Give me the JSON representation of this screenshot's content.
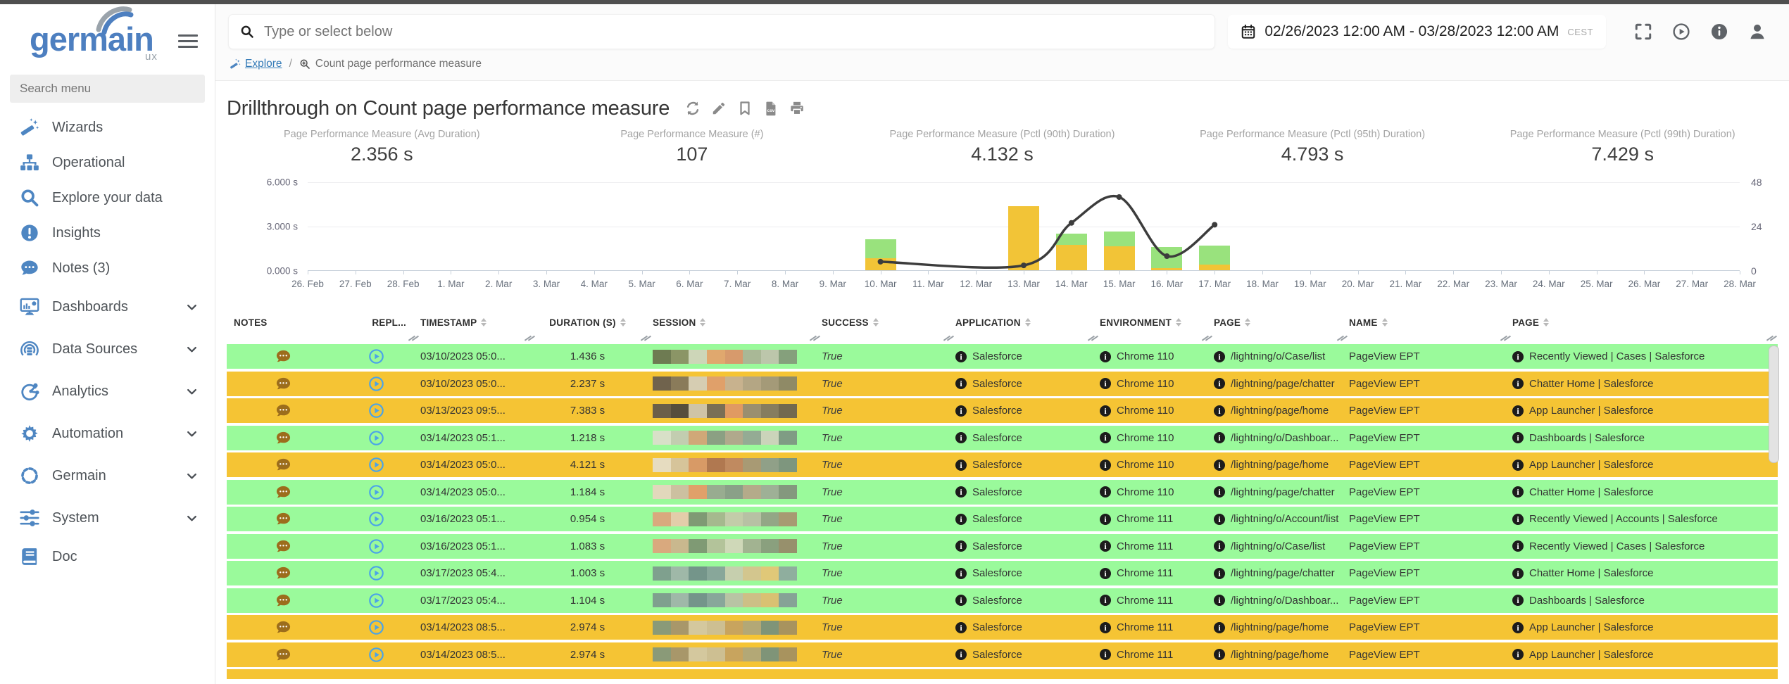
{
  "colors": {
    "accent_blue": "#4e86c2",
    "link_blue": "#337ab7",
    "row_green": "#9afa9b",
    "row_yellow": "#f5c434",
    "bar_green": "#99e27d",
    "bar_yellow": "#f2c437",
    "line": "#3c3c3c",
    "note_icon": "#9c6d1c",
    "play_icon": "#4aa3e8"
  },
  "topbar": {
    "search_placeholder": "Type or select below",
    "date_range": "02/26/2023 12:00 AM - 03/28/2023 12:00 AM",
    "timezone": "CEST",
    "action_icons": [
      "fullscreen-icon",
      "play-circle-icon",
      "info-circle-icon",
      "user-icon"
    ]
  },
  "sidebar": {
    "logo_text": "germain",
    "logo_sub": "ux",
    "search_placeholder": "Search menu",
    "items": [
      {
        "label": "Wizards",
        "icon": "wand-icon",
        "expandable": false
      },
      {
        "label": "Operational",
        "icon": "sitemap-icon",
        "expandable": false
      },
      {
        "label": "Explore your data",
        "icon": "search-icon",
        "expandable": false
      },
      {
        "label": "Insights",
        "icon": "alert-circle-icon",
        "expandable": false
      },
      {
        "label": "Notes (3)",
        "icon": "comment-icon",
        "expandable": false
      },
      {
        "label": "Dashboards",
        "icon": "dashboard-monitor-icon",
        "expandable": true
      },
      {
        "label": "Data Sources",
        "icon": "data-sources-icon",
        "expandable": true
      },
      {
        "label": "Analytics",
        "icon": "analytics-nodes-icon",
        "expandable": true
      },
      {
        "label": "Automation",
        "icon": "gear-icon",
        "expandable": true
      },
      {
        "label": "Germain",
        "icon": "dashed-circle-icon",
        "expandable": true
      },
      {
        "label": "System",
        "icon": "sliders-icon",
        "expandable": true
      },
      {
        "label": "Doc",
        "icon": "book-icon",
        "expandable": false
      }
    ]
  },
  "breadcrumb": {
    "root": "Explore",
    "separator": "/",
    "current": "Count page performance measure"
  },
  "page": {
    "title": "Drillthrough on Count page performance measure",
    "toolbar_icons": [
      "refresh-icon",
      "pencil-icon",
      "bookmark-icon",
      "csv-file-icon",
      "printer-icon"
    ]
  },
  "metrics": [
    {
      "label": "Page Performance Measure (Avg Duration)",
      "value": "2.356 s"
    },
    {
      "label": "Page Performance Measure (#)",
      "value": "107"
    },
    {
      "label": "Page Performance Measure (Pctl (90th) Duration)",
      "value": "4.132 s"
    },
    {
      "label": "Page Performance Measure (Pctl (95th) Duration)",
      "value": "4.793 s"
    },
    {
      "label": "Page Performance Measure (Pctl (99th) Duration)",
      "value": "7.429 s"
    }
  ],
  "chart_data": {
    "type": "bar+line",
    "x_ticks": [
      "26. Feb",
      "27. Feb",
      "28. Feb",
      "1. Mar",
      "2. Mar",
      "3. Mar",
      "4. Mar",
      "5. Mar",
      "6. Mar",
      "7. Mar",
      "8. Mar",
      "9. Mar",
      "10. Mar",
      "11. Mar",
      "12. Mar",
      "13. Mar",
      "14. Mar",
      "15. Mar",
      "16. Mar",
      "17. Mar",
      "18. Mar",
      "19. Mar",
      "20. Mar",
      "21. Mar",
      "22. Mar",
      "23. Mar",
      "24. Mar",
      "25. Mar",
      "26. Mar",
      "27. Mar",
      "28. Mar"
    ],
    "left_axis": {
      "ticks": [
        "0.000 s",
        "3.000 s",
        "6.000 s"
      ],
      "max_seconds": 6
    },
    "right_axis": {
      "ticks": [
        "0",
        "24",
        "48"
      ],
      "max": 48
    },
    "grid": true,
    "legend": "none",
    "bars": {
      "stack_order": [
        "yellow",
        "green"
      ],
      "points": [
        {
          "x": "10. Mar",
          "yellow_s": 0.8,
          "green_s": 1.3
        },
        {
          "x": "13. Mar",
          "yellow_s": 4.35,
          "green_s": 0
        },
        {
          "x": "14. Mar",
          "yellow_s": 1.7,
          "green_s": 0.8
        },
        {
          "x": "15. Mar",
          "yellow_s": 1.6,
          "green_s": 1.0
        },
        {
          "x": "16. Mar",
          "yellow_s": 0.15,
          "green_s": 1.4
        },
        {
          "x": "17. Mar",
          "yellow_s": 0.4,
          "green_s": 1.25
        }
      ]
    },
    "line": {
      "axis": "right",
      "points": [
        {
          "x": "10. Mar",
          "value": 5
        },
        {
          "x": "13. Mar",
          "value": 3
        },
        {
          "x": "14. Mar",
          "value": 26
        },
        {
          "x": "15. Mar",
          "value": 40
        },
        {
          "x": "16. Mar",
          "value": 8
        },
        {
          "x": "17. Mar",
          "value": 25
        }
      ]
    }
  },
  "table": {
    "columns": [
      {
        "label": "NOTES",
        "sortable": false,
        "align": "left"
      },
      {
        "label": "REPL...",
        "sortable": false,
        "align": "right"
      },
      {
        "label": "TIMESTAMP",
        "sortable": true,
        "align": "left"
      },
      {
        "label": "DURATION (S)",
        "sortable": true,
        "align": "center"
      },
      {
        "label": "SESSION",
        "sortable": true,
        "align": "left"
      },
      {
        "label": "SUCCESS",
        "sortable": true,
        "align": "left"
      },
      {
        "label": "APPLICATION",
        "sortable": true,
        "align": "left"
      },
      {
        "label": "ENVIRONMENT",
        "sortable": true,
        "align": "left"
      },
      {
        "label": "PAGE",
        "sortable": true,
        "align": "left"
      },
      {
        "label": "NAME",
        "sortable": true,
        "align": "left"
      },
      {
        "label": "PAGE",
        "sortable": true,
        "align": "left"
      }
    ],
    "rows": [
      {
        "color": "green",
        "timestamp": "03/10/2023 05:0...",
        "duration": "1.436 s",
        "session_colors": [
          "#6e7b52",
          "#8b9566",
          "#cdd6b8",
          "#e0a86e",
          "#d79a6c",
          "#a9b896",
          "#bcc6ab",
          "#85a07c"
        ],
        "success": "True",
        "application": "Salesforce",
        "environment": "Chrome 110",
        "page_path": "/lightning/o/Case/list",
        "name": "PageView EPT",
        "page_title": "Recently Viewed | Cases | Salesforce"
      },
      {
        "color": "yellow",
        "timestamp": "03/10/2023 05:0...",
        "duration": "2.237 s",
        "session_colors": [
          "#70634d",
          "#8a7b5a",
          "#d6cdb2",
          "#e0a06a",
          "#c8b28e",
          "#b4a684",
          "#a49a78",
          "#8f8a66"
        ],
        "success": "True",
        "application": "Salesforce",
        "environment": "Chrome 110",
        "page_path": "/lightning/page/chatter",
        "name": "PageView EPT",
        "page_title": "Chatter Home | Salesforce"
      },
      {
        "color": "yellow",
        "timestamp": "03/13/2023 09:5...",
        "duration": "7.383 s",
        "session_colors": [
          "#6b5f49",
          "#564e3c",
          "#cfc4a6",
          "#7a6f55",
          "#e09a62",
          "#9a8f6f",
          "#867d5f",
          "#72694f"
        ],
        "success": "True",
        "application": "Salesforce",
        "environment": "Chrome 110",
        "page_path": "/lightning/page/home",
        "name": "PageView EPT",
        "page_title": "App Launcher | Salesforce"
      },
      {
        "color": "green",
        "timestamp": "03/14/2023 05:1...",
        "duration": "1.218 s",
        "session_colors": [
          "#d8e0c8",
          "#c2cdb0",
          "#d0a878",
          "#8ba083",
          "#b0a98c",
          "#94ab94",
          "#cbd4ba",
          "#7f9c84"
        ],
        "success": "True",
        "application": "Salesforce",
        "environment": "Chrome 110",
        "page_path": "/lightning/o/Dashboar...",
        "name": "PageView EPT",
        "page_title": "Dashboards | Salesforce"
      },
      {
        "color": "yellow",
        "timestamp": "03/14/2023 05:0...",
        "duration": "4.121 s",
        "session_colors": [
          "#e6dcc0",
          "#d6c49a",
          "#d89a66",
          "#b07850",
          "#c08a60",
          "#a89a74",
          "#90a088",
          "#7e967e"
        ],
        "success": "True",
        "application": "Salesforce",
        "environment": "Chrome 110",
        "page_path": "/lightning/page/home",
        "name": "PageView EPT",
        "page_title": "App Launcher | Salesforce"
      },
      {
        "color": "green",
        "timestamp": "03/14/2023 05:0...",
        "duration": "1.184 s",
        "session_colors": [
          "#e2d8bc",
          "#ccc0a0",
          "#e0a06a",
          "#98ac90",
          "#8aa088",
          "#b4ab8a",
          "#9eb096",
          "#84987e"
        ],
        "success": "True",
        "application": "Salesforce",
        "environment": "Chrome 110",
        "page_path": "/lightning/page/chatter",
        "name": "PageView EPT",
        "page_title": "Chatter Home | Salesforce"
      },
      {
        "color": "green",
        "timestamp": "03/16/2023 05:1...",
        "duration": "0.954 s",
        "session_colors": [
          "#d9a97e",
          "#e3cdaa",
          "#7f9a74",
          "#a5b98e",
          "#c2cca9",
          "#b7c1a4",
          "#93a686",
          "#a79a72"
        ],
        "success": "True",
        "application": "Salesforce",
        "environment": "Chrome 111",
        "page_path": "/lightning/o/Account/list",
        "name": "PageView EPT",
        "page_title": "Recently Viewed | Accounts | Salesforce"
      },
      {
        "color": "green",
        "timestamp": "03/16/2023 05:1...",
        "duration": "1.083 s",
        "session_colors": [
          "#d9a97e",
          "#c9b88e",
          "#7f9a74",
          "#b3c39a",
          "#cfd8b8",
          "#a2b391",
          "#8aa07e",
          "#97906c"
        ],
        "success": "True",
        "application": "Salesforce",
        "environment": "Chrome 111",
        "page_path": "/lightning/o/Case/list",
        "name": "PageView EPT",
        "page_title": "Recently Viewed | Cases | Salesforce"
      },
      {
        "color": "green",
        "timestamp": "03/17/2023 05:4...",
        "duration": "1.003 s",
        "session_colors": [
          "#7fa08e",
          "#9fb8a8",
          "#74958a",
          "#88a79a",
          "#c6cfae",
          "#d3c68e",
          "#e0c878",
          "#8fae9e"
        ],
        "success": "True",
        "application": "Salesforce",
        "environment": "Chrome 111",
        "page_path": "/lightning/page/chatter",
        "name": "PageView EPT",
        "page_title": "Chatter Home | Salesforce"
      },
      {
        "color": "green",
        "timestamp": "03/17/2023 05:4...",
        "duration": "1.104 s",
        "session_colors": [
          "#7fa08e",
          "#9fb8a8",
          "#74958a",
          "#88a79a",
          "#b8c4a4",
          "#cdbf86",
          "#d9c172",
          "#86a396"
        ],
        "success": "True",
        "application": "Salesforce",
        "environment": "Chrome 111",
        "page_path": "/lightning/o/Dashboar...",
        "name": "PageView EPT",
        "page_title": "Dashboards | Salesforce"
      },
      {
        "color": "yellow",
        "timestamp": "03/14/2023 08:5...",
        "duration": "2.974 s",
        "session_colors": [
          "#8a9a78",
          "#a8976a",
          "#d4c89e",
          "#cdbf92",
          "#c8a45e",
          "#b3a876",
          "#7f9478",
          "#a8935e"
        ],
        "success": "True",
        "application": "Salesforce",
        "environment": "Chrome 111",
        "page_path": "/lightning/page/home",
        "name": "PageView EPT",
        "page_title": "App Launcher | Salesforce"
      },
      {
        "color": "yellow",
        "timestamp": "03/14/2023 08:5...",
        "duration": "2.974 s",
        "session_colors": [
          "#8a9a78",
          "#a8976a",
          "#d4c89e",
          "#cdbf92",
          "#c8a45e",
          "#b3a876",
          "#7f9478",
          "#a8935e"
        ],
        "success": "True",
        "application": "Salesforce",
        "environment": "Chrome 111",
        "page_path": "/lightning/page/home",
        "name": "PageView EPT",
        "page_title": "App Launcher | Salesforce"
      }
    ],
    "partial_row_color": "yellow"
  }
}
